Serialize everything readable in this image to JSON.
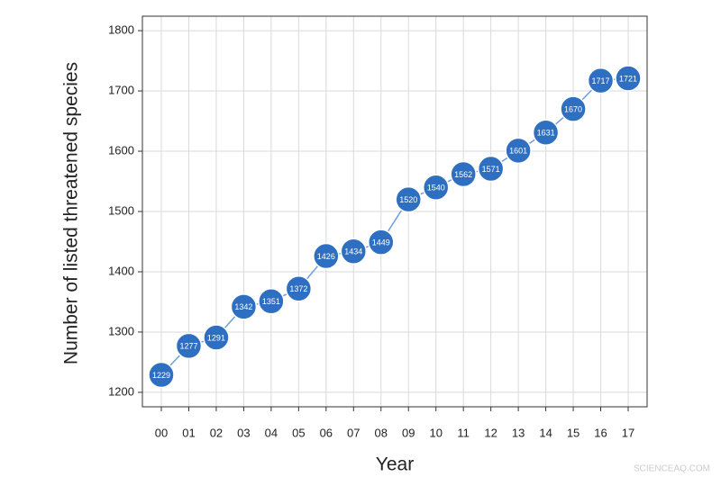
{
  "chart_data": {
    "type": "line",
    "x_label": "Year",
    "y_label": "Number of listed threatened species",
    "categories": [
      "00",
      "01",
      "02",
      "03",
      "04",
      "05",
      "06",
      "07",
      "08",
      "09",
      "10",
      "11",
      "12",
      "13",
      "14",
      "15",
      "16",
      "17"
    ],
    "values": [
      1229,
      1277,
      1291,
      1342,
      1351,
      1372,
      1426,
      1434,
      1449,
      1520,
      1540,
      1562,
      1571,
      1601,
      1631,
      1670,
      1717,
      1721
    ],
    "color": "#2f6fc1",
    "line_color": "#6f9fd8",
    "ylim": [
      1176,
      1824
    ],
    "yticks": [
      1200,
      1300,
      1400,
      1500,
      1600,
      1700,
      1800
    ],
    "grid": true,
    "watermark": "SCIENCEAQ.COM"
  }
}
